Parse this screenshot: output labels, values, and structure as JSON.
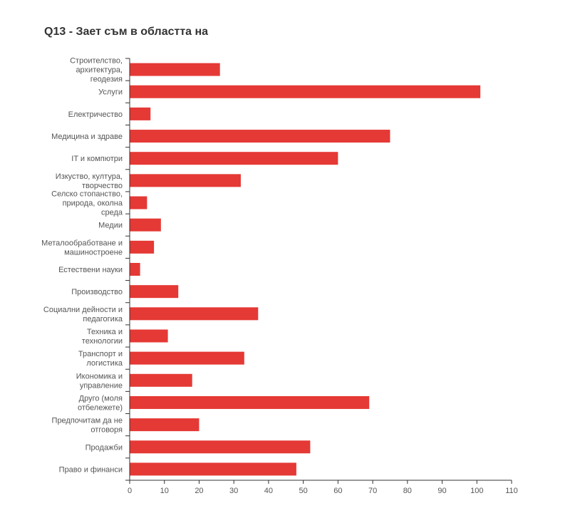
{
  "chart_data": {
    "type": "bar",
    "orientation": "horizontal",
    "title": "Q13 - Зает съм в областта на",
    "categories": [
      "Строителство, архитектура, геодезия",
      "Услуги",
      "Електричество",
      "Медицина и здраве",
      "IT и компютри",
      "Изкуство, култура, творчество",
      "Селско стопанство, природа, околна среда",
      "Медии",
      "Металообработване и машиностроене",
      "Естествени науки",
      "Производство",
      "Социални дейности и педагогика",
      "Техника и технологии",
      "Транспорт и логистика",
      "Икономика и управление",
      "Друго (моля отбележете)",
      "Предпочитам да не отговоря",
      "Продажби",
      "Право и финанси"
    ],
    "category_lines": [
      [
        "Строителство,",
        "архитектура,",
        "геодезия"
      ],
      [
        "Услуги"
      ],
      [
        "Електричество"
      ],
      [
        "Медицина и здраве"
      ],
      [
        "IT и компютри"
      ],
      [
        "Изкуство, култура,",
        "творчество"
      ],
      [
        "Селско стопанство,",
        "природа, околна",
        "среда"
      ],
      [
        "Медии"
      ],
      [
        "Металообработване и",
        "машиностроене"
      ],
      [
        "Естествени науки"
      ],
      [
        "Производство"
      ],
      [
        "Социални дейности и",
        "педагогика"
      ],
      [
        "Техника и",
        "технологии"
      ],
      [
        "Транспорт и",
        "логистика"
      ],
      [
        "Икономика и",
        "управление"
      ],
      [
        "Друго (моля",
        "отбележете)"
      ],
      [
        "Предпочитам да не",
        "отговоря"
      ],
      [
        "Продажби"
      ],
      [
        "Право и финанси"
      ]
    ],
    "values": [
      26,
      101,
      6,
      75,
      60,
      32,
      5,
      9,
      7,
      3,
      14,
      37,
      11,
      33,
      18,
      69,
      20,
      52,
      48
    ],
    "xlim": [
      0,
      110
    ],
    "xticks": [
      0,
      10,
      20,
      30,
      40,
      50,
      60,
      70,
      80,
      90,
      100,
      110
    ],
    "xlabel": "",
    "ylabel": "",
    "grid": false,
    "bar_color": "#e53935"
  }
}
